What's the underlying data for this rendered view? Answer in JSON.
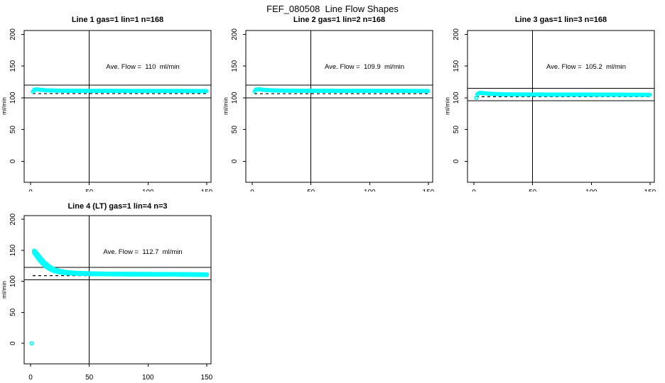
{
  "title": "FEF_080508  Line Flow Shapes",
  "axes": {
    "ylabel": "ml/min",
    "x_ticks": [
      0,
      50,
      100,
      150
    ],
    "y_ticks": [
      0,
      50,
      100,
      150,
      200
    ],
    "x_domain": [
      -5.5,
      153.7
    ],
    "y_domain": [
      -33,
      206
    ],
    "grid": false
  },
  "style": {
    "point_color": "#00ffff",
    "ref_line_color": "#000000",
    "marker": "open-circle"
  },
  "chart_data": [
    {
      "type": "scatter",
      "title": "Line 1 gas=1 lin=1 n=168",
      "annotation": "Ave. Flow =  110  ml/min",
      "ave_flow_ml_min": 110,
      "n": 168,
      "hlines": [
        120,
        100
      ],
      "vline_x": 50,
      "dashed_mean": 110,
      "x_step": 0.9,
      "runs": [
        [
          [
            2,
            110
          ],
          [
            3,
            112.6
          ],
          [
            5,
            113.2
          ],
          [
            7,
            112.9
          ],
          [
            10,
            112.3
          ],
          [
            15,
            111.7
          ],
          [
            20,
            111.4
          ],
          [
            30,
            111.1
          ],
          [
            45,
            111.0
          ],
          [
            70,
            110.9
          ],
          [
            100,
            110.8
          ],
          [
            125,
            110.8
          ],
          [
            150,
            110.6
          ]
        ]
      ],
      "extra_points": []
    },
    {
      "type": "scatter",
      "title": "Line 2 gas=1 lin=2 n=168",
      "annotation": "Ave. Flow =  109.9  ml/min",
      "ave_flow_ml_min": 109.9,
      "n": 168,
      "hlines": [
        119.9,
        99.9
      ],
      "vline_x": 50,
      "dashed_mean": 109.9,
      "x_step": 0.9,
      "runs": [
        [
          [
            2,
            110.3
          ],
          [
            3,
            112.9
          ],
          [
            5,
            113.4
          ],
          [
            7,
            113.1
          ],
          [
            10,
            112.5
          ],
          [
            15,
            111.9
          ],
          [
            20,
            111.5
          ],
          [
            30,
            111.2
          ],
          [
            45,
            111.1
          ],
          [
            70,
            111.0
          ],
          [
            100,
            110.9
          ],
          [
            125,
            110.9
          ],
          [
            150,
            110.7
          ]
        ]
      ],
      "extra_points": []
    },
    {
      "type": "scatter",
      "title": "Line 3 gas=1 lin=3 n=168",
      "annotation": "Ave. Flow =  105.2  ml/min",
      "ave_flow_ml_min": 105.2,
      "n": 168,
      "hlines": [
        115.2,
        95.2
      ],
      "vline_x": 50,
      "dashed_mean": 105.2,
      "x_step": 0.9,
      "runs": [
        [
          [
            2,
            100
          ],
          [
            3,
            106.3
          ],
          [
            5,
            107.9
          ],
          [
            7,
            107.6
          ],
          [
            10,
            107.0
          ],
          [
            15,
            106.3
          ],
          [
            20,
            105.8
          ],
          [
            30,
            105.4
          ],
          [
            45,
            105.2
          ],
          [
            70,
            105.1
          ],
          [
            100,
            105.0
          ],
          [
            125,
            104.9
          ],
          [
            150,
            104.7
          ]
        ]
      ],
      "extra_points": []
    },
    {
      "type": "scatter",
      "title": "Line 4 (LT) gas=1 lin=4 n=3",
      "annotation": "Ave. Flow =  112.7  ml/min",
      "ave_flow_ml_min": 112.7,
      "n": 3,
      "hlines": [
        122.7,
        102.7
      ],
      "vline_x": 50,
      "dashed_mean": 112.7,
      "x_step": 0.7,
      "runs": [
        [
          [
            3,
            146
          ],
          [
            5,
            141
          ],
          [
            8,
            133
          ],
          [
            12,
            125
          ],
          [
            16,
            120
          ],
          [
            20,
            116.5
          ],
          [
            25,
            114.3
          ],
          [
            30,
            113.2
          ],
          [
            40,
            112.3
          ],
          [
            60,
            111.6
          ],
          [
            80,
            111.3
          ],
          [
            100,
            111.2
          ],
          [
            120,
            111.0
          ],
          [
            150,
            110.4
          ]
        ],
        [
          [
            3,
            148
          ],
          [
            5,
            143.5
          ],
          [
            8,
            135.5
          ],
          [
            12,
            127.5
          ],
          [
            16,
            122
          ],
          [
            20,
            118
          ],
          [
            25,
            115.5
          ],
          [
            30,
            114
          ],
          [
            40,
            112.8
          ],
          [
            60,
            112
          ],
          [
            80,
            111.7
          ],
          [
            100,
            111.5
          ],
          [
            120,
            111.3
          ],
          [
            150,
            110.8
          ]
        ],
        [
          [
            3,
            149.5
          ],
          [
            5,
            146
          ],
          [
            8,
            138.5
          ],
          [
            12,
            130
          ],
          [
            16,
            124
          ],
          [
            20,
            119.5
          ],
          [
            25,
            116.8
          ],
          [
            30,
            115
          ],
          [
            40,
            113.5
          ],
          [
            60,
            112.5
          ],
          [
            80,
            112.1
          ],
          [
            100,
            111.9
          ],
          [
            120,
            111.7
          ],
          [
            150,
            111.2
          ]
        ]
      ],
      "extra_points": [
        [
          1,
          0
        ]
      ]
    }
  ]
}
